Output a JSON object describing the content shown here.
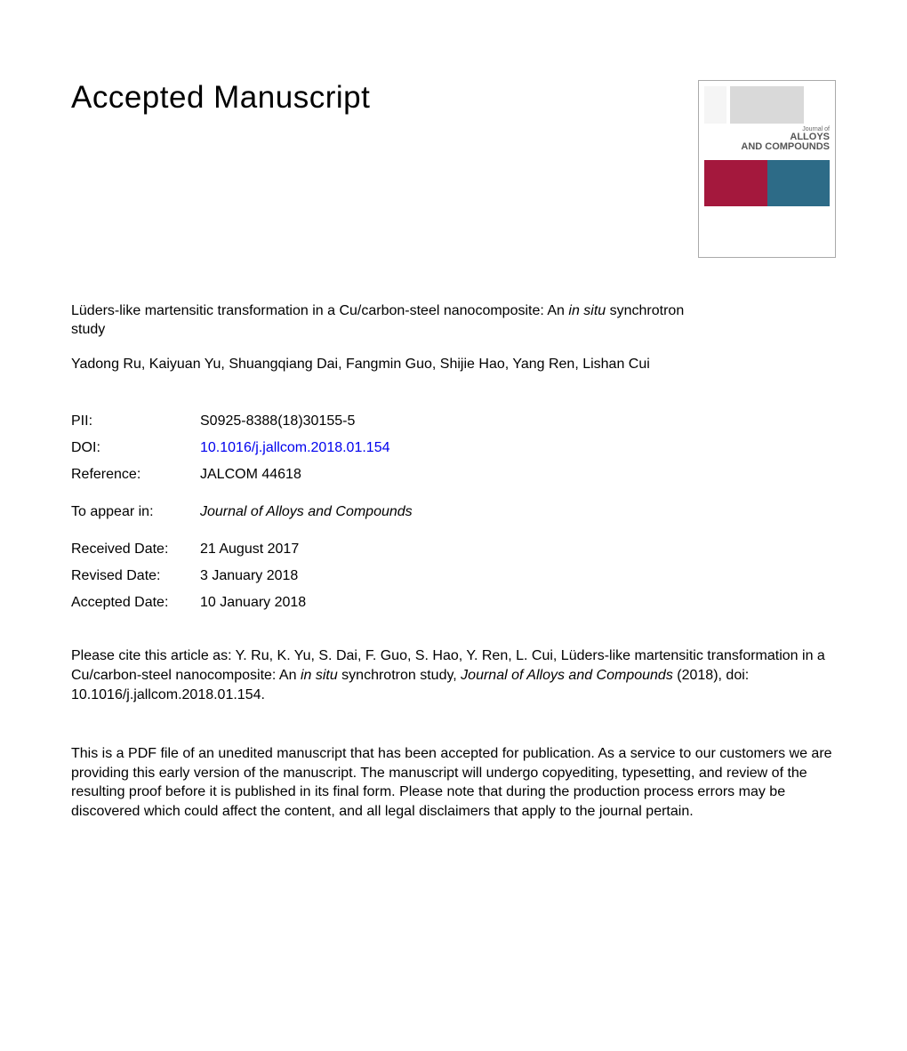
{
  "heading": "Accepted Manuscript",
  "cover": {
    "journal_of": "Journal of",
    "title_line1": "ALLOYS",
    "title_line2": "AND COMPOUNDS",
    "colors": {
      "block_left": "#a4183d",
      "block_right": "#2d6b87",
      "gray_block": "#d9d9d9"
    }
  },
  "article": {
    "title_prefix": "Lüders-like martensitic transformation in a Cu/carbon-steel nanocomposite: An ",
    "title_italic": "in situ",
    "title_suffix": " synchrotron study",
    "authors": "Yadong Ru, Kaiyuan Yu, Shuangqiang Dai, Fangmin Guo, Shijie Hao, Yang Ren, Lishan Cui"
  },
  "meta": {
    "pii_label": "PII:",
    "pii_value": "S0925-8388(18)30155-5",
    "doi_label": "DOI:",
    "doi_value": "10.1016/j.jallcom.2018.01.154",
    "reference_label": "Reference:",
    "reference_value": "JALCOM 44618",
    "appear_label": "To appear in:",
    "appear_value": "Journal of Alloys and Compounds",
    "received_label": "Received Date:",
    "received_value": "21 August 2017",
    "revised_label": "Revised Date:",
    "revised_value": "3 January 2018",
    "accepted_label": "Accepted Date:",
    "accepted_value": "10 January 2018"
  },
  "citation": {
    "prefix": "Please cite this article as: Y. Ru, K. Yu, S. Dai, F. Guo, S. Hao, Y. Ren, L. Cui, Lüders-like martensitic transformation in a Cu/carbon-steel nanocomposite: An ",
    "italic1": "in situ",
    "mid": " synchrotron study, ",
    "italic2": "Journal of Alloys and Compounds",
    "suffix": " (2018), doi: 10.1016/j.jallcom.2018.01.154."
  },
  "disclaimer": "This is a PDF file of an unedited manuscript that has been accepted for publication. As a service to our customers we are providing this early version of the manuscript. The manuscript will undergo copyediting, typesetting, and review of the resulting proof before it is published in its final form. Please note that during the production process errors may be discovered which could affect the content, and all legal disclaimers that apply to the journal pertain."
}
